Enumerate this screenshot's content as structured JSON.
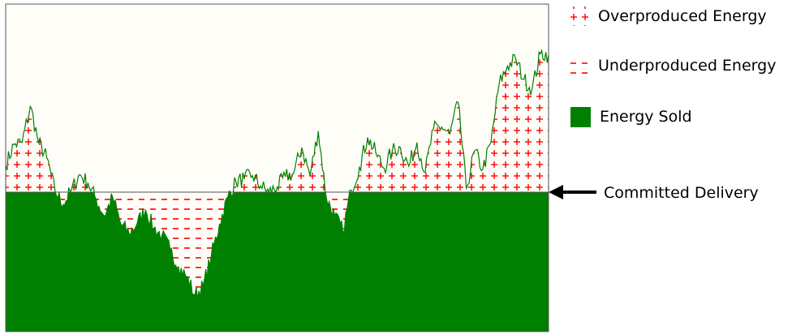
{
  "chart_data": {
    "type": "area",
    "title": "",
    "xlabel": "",
    "ylabel": "",
    "committed_delivery": 0,
    "ylim": [
      -1.35,
      1.82
    ],
    "grid": false,
    "legend_placement": "right",
    "x": [
      0,
      10,
      20,
      30,
      40,
      50,
      60,
      70,
      80,
      90,
      100,
      110,
      120,
      130,
      140,
      150,
      160,
      170,
      180,
      190,
      200,
      210,
      220,
      230,
      240,
      250,
      260,
      270,
      280,
      290,
      300,
      310,
      320,
      330,
      340,
      350,
      360,
      370,
      380,
      390,
      400,
      410,
      420,
      430,
      440,
      450,
      460,
      470,
      480,
      490,
      500,
      510,
      520,
      530,
      540,
      550,
      560,
      570,
      580,
      590,
      600,
      610,
      620,
      630,
      640,
      650,
      660
    ],
    "y": [
      0.26,
      0.46,
      0.48,
      0.83,
      0.48,
      0.33,
      0.01,
      -0.12,
      0.02,
      0.17,
      0.09,
      -0.07,
      -0.23,
      -0.05,
      -0.31,
      -0.4,
      -0.3,
      -0.17,
      -0.35,
      -0.42,
      -0.56,
      -0.72,
      -0.82,
      -1.0,
      -0.91,
      -0.62,
      -0.31,
      -0.05,
      0.1,
      0.13,
      0.16,
      0.06,
      0.0,
      0.05,
      0.15,
      0.18,
      0.43,
      0.16,
      0.59,
      -0.06,
      -0.23,
      -0.38,
      0.02,
      0.24,
      0.53,
      0.38,
      0.23,
      0.4,
      0.43,
      0.25,
      0.48,
      0.19,
      0.61,
      0.63,
      0.56,
      0.87,
      0.03,
      0.4,
      0.22,
      0.48,
      1.05,
      1.22,
      1.29,
      1.09,
      1.0,
      1.34,
      1.33
    ],
    "series": [
      {
        "name": "Overproduced Energy",
        "color": "#ff0000",
        "pattern": "plus"
      },
      {
        "name": "Underproduced Energy",
        "color": "#ff0000",
        "pattern": "dash"
      },
      {
        "name": "Energy Sold",
        "color": "#008000",
        "pattern": "solid"
      }
    ],
    "annotation": "Committed Delivery"
  }
}
